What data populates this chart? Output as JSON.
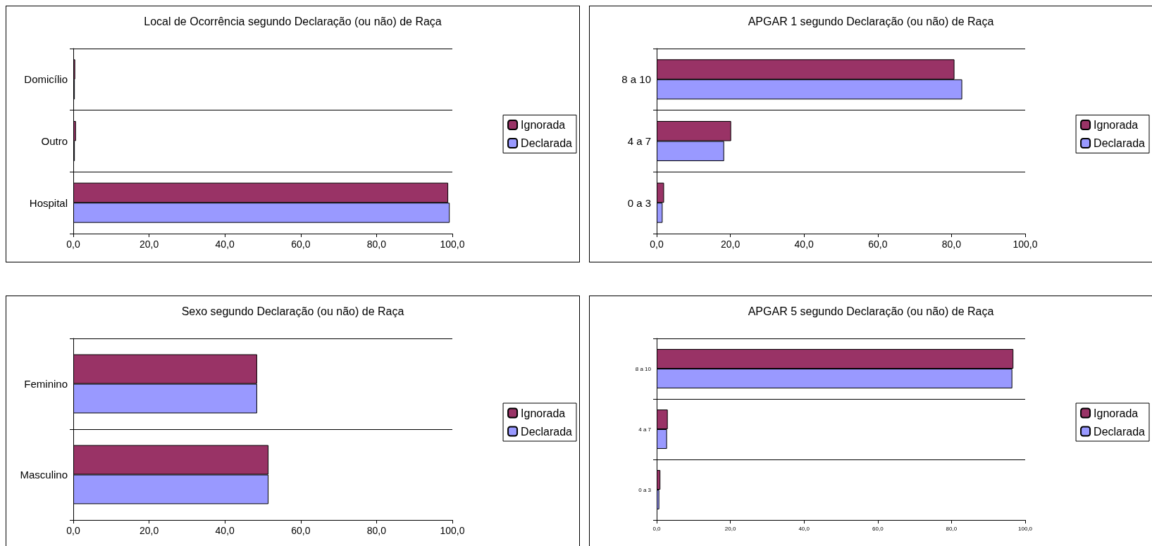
{
  "chart_data": [
    {
      "type": "bar",
      "orientation": "horizontal",
      "title": "Local de Ocorrência segundo Declaração (ou não) de Raça",
      "categories": [
        "Domicílio",
        "Outro",
        "Hospital"
      ],
      "series": [
        {
          "name": "Ignorada",
          "color": "#993366",
          "values": [
            0.5,
            0.7,
            98.9
          ]
        },
        {
          "name": "Declarada",
          "color": "#9999ff",
          "values": [
            0.4,
            0.4,
            99.3
          ]
        }
      ],
      "xlim": [
        0,
        100
      ],
      "xticks": [
        {
          "value": 0,
          "label": "0,0"
        },
        {
          "value": 20,
          "label": "20,0"
        },
        {
          "value": 40,
          "label": "40,0"
        },
        {
          "value": 60,
          "label": "60,0"
        },
        {
          "value": 80,
          "label": "80,0"
        },
        {
          "value": 100,
          "label": "100,0"
        }
      ],
      "grid": "y",
      "legend": "right"
    },
    {
      "type": "bar",
      "orientation": "horizontal",
      "title": "APGAR 1 segundo Declaração (ou não) de Raça",
      "categories": [
        "8 a 10",
        "4 a 7",
        "0 a 3"
      ],
      "series": [
        {
          "name": "Ignorada",
          "color": "#993366",
          "values": [
            80.8,
            20.2,
            2.0
          ]
        },
        {
          "name": "Declarada",
          "color": "#9999ff",
          "values": [
            82.9,
            18.3,
            1.6
          ]
        }
      ],
      "xlim": [
        0,
        100
      ],
      "xticks": [
        {
          "value": 0,
          "label": "0,0"
        },
        {
          "value": 20,
          "label": "20,0"
        },
        {
          "value": 40,
          "label": "40,0"
        },
        {
          "value": 60,
          "label": "60,0"
        },
        {
          "value": 80,
          "label": "80,0"
        },
        {
          "value": 100,
          "label": "100,0"
        }
      ],
      "grid": "y",
      "legend": "right"
    },
    {
      "type": "bar",
      "orientation": "horizontal",
      "title": "Sexo segundo Declaração (ou não) de Raça",
      "categories": [
        "Feminino",
        "Masculino"
      ],
      "series": [
        {
          "name": "Ignorada",
          "color": "#993366",
          "values": [
            48.5,
            51.5
          ]
        },
        {
          "name": "Declarada",
          "color": "#9999ff",
          "values": [
            48.5,
            51.5
          ]
        }
      ],
      "xlim": [
        0,
        100
      ],
      "xticks": [
        {
          "value": 0,
          "label": "0,0"
        },
        {
          "value": 20,
          "label": "20,0"
        },
        {
          "value": 40,
          "label": "40,0"
        },
        {
          "value": 60,
          "label": "60,0"
        },
        {
          "value": 80,
          "label": "80,0"
        },
        {
          "value": 100,
          "label": "100,0"
        }
      ],
      "grid": "y",
      "legend": "right"
    },
    {
      "type": "bar",
      "orientation": "horizontal",
      "title": "APGAR 5 segundo Declaração (ou não) de Raça",
      "categories": [
        "8 a 10",
        "4 a 7",
        "0 a 3"
      ],
      "series": [
        {
          "name": "Ignorada",
          "color": "#993366",
          "values": [
            96.8,
            3.0,
            1.0
          ]
        },
        {
          "name": "Declarada",
          "color": "#9999ff",
          "values": [
            96.5,
            2.8,
            0.7
          ]
        }
      ],
      "xlim": [
        0,
        100
      ],
      "xticks": [
        {
          "value": 0,
          "label": "0,0"
        },
        {
          "value": 20,
          "label": "20,0"
        },
        {
          "value": 40,
          "label": "40,0"
        },
        {
          "value": 60,
          "label": "60,0"
        },
        {
          "value": 80,
          "label": "80,0"
        },
        {
          "value": 100,
          "label": "100,0"
        }
      ],
      "grid": "y",
      "legend": "right"
    }
  ]
}
